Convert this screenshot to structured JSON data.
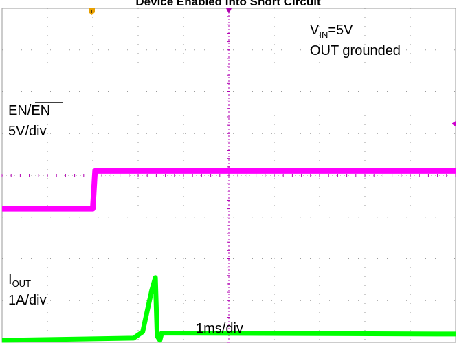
{
  "title": "Device Enabled Into Short Circuit",
  "annotations": {
    "vin_sub_main": "V",
    "vin_sub_sub": "IN",
    "vin_sub_value": "=5V",
    "out_grounded": "OUT grounded",
    "en_label": "EN/",
    "en_label_bar": "EN",
    "en_scale": "5V/div",
    "iout_main": "I",
    "iout_sub": "OUT",
    "iout_scale": "1A/div",
    "time_scale": "1ms/div"
  },
  "colors": {
    "en_trace": "#ff00ff",
    "iout_trace": "#00ff00",
    "grid": "#9a9a9a",
    "trigger_marker": "#e8a000"
  },
  "chart_data": {
    "type": "line",
    "title": "Device Enabled Into Short Circuit",
    "xlabel": "1ms/div",
    "x_divisions": 10,
    "y_divisions": 8,
    "xlim": [
      0,
      10
    ],
    "grid": true,
    "x_unit": "div",
    "series": [
      {
        "name": "EN/EN",
        "scale": "5V/div",
        "points": [
          [
            0,
            3.2
          ],
          [
            2.0,
            3.2
          ],
          [
            2.05,
            4.1
          ],
          [
            10,
            4.1
          ]
        ]
      },
      {
        "name": "IOUT",
        "scale": "1A/div",
        "points": [
          [
            0,
            0.05
          ],
          [
            2.9,
            0.1
          ],
          [
            3.1,
            0.25
          ],
          [
            3.3,
            1.25
          ],
          [
            3.38,
            1.55
          ],
          [
            3.42,
            0.15
          ],
          [
            3.48,
            0.05
          ],
          [
            3.52,
            0.22
          ],
          [
            10,
            0.2
          ]
        ]
      }
    ]
  }
}
